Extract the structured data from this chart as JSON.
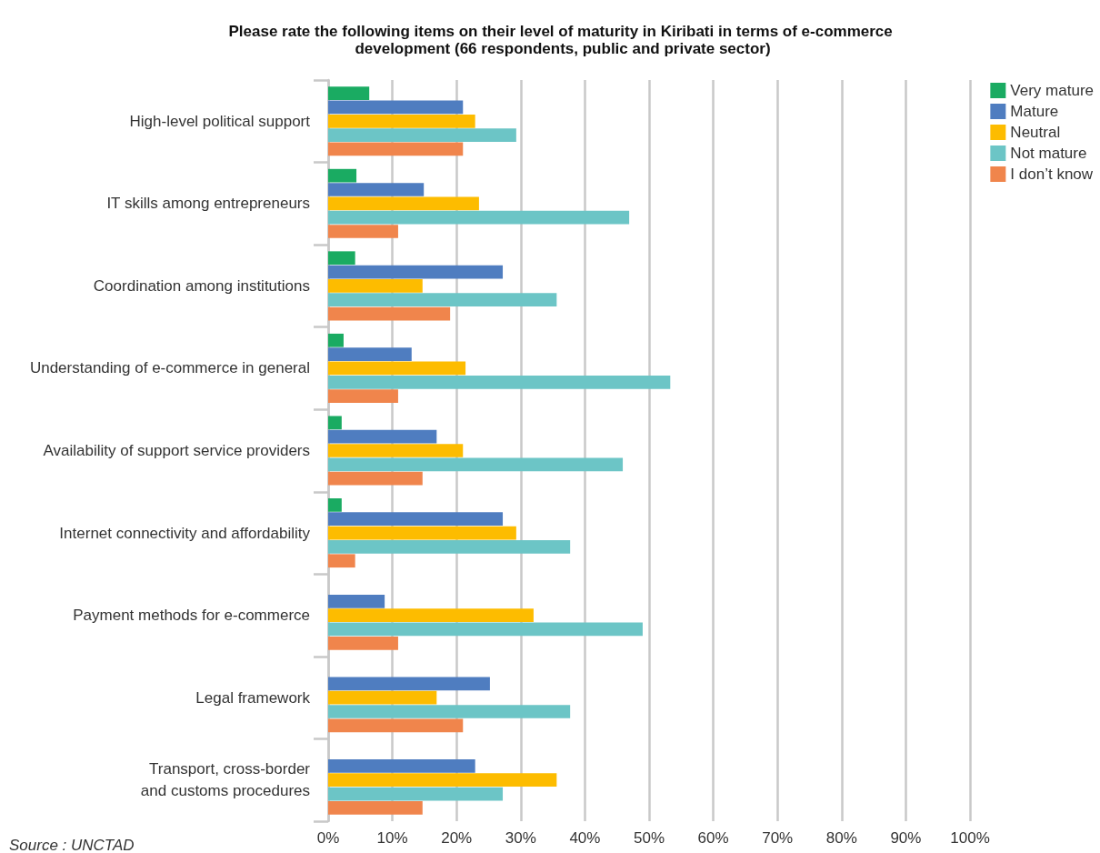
{
  "chart_data": {
    "type": "bar",
    "orientation": "horizontal",
    "title": "Please rate the following items on their level of maturity in Kiribati in terms of e-commerce development (66 respondents, public and private sector)",
    "categories": [
      "High-level political support",
      "IT skills among entrepreneurs",
      "Coordination among institutions",
      "Understanding of e-commerce in general",
      "Availability of support service providers",
      "Internet connectivity and affordability",
      "Payment methods for e-commerce",
      "Legal framework",
      "Transport, cross-border\nand customs procedures"
    ],
    "series": [
      {
        "name": "Very mature",
        "color": "#1aab62",
        "values": [
          6.4,
          4.4,
          4.2,
          2.4,
          2.1,
          2.1,
          0,
          0,
          0
        ]
      },
      {
        "name": "Mature",
        "color": "#4f7dc0",
        "values": [
          21.0,
          14.9,
          27.2,
          13.0,
          16.9,
          27.2,
          8.8,
          25.2,
          22.9
        ]
      },
      {
        "name": "Neutral",
        "color": "#fdbc00",
        "values": [
          22.9,
          23.5,
          14.7,
          21.4,
          21.0,
          29.3,
          32.0,
          16.9,
          35.6
        ]
      },
      {
        "name": "Not mature",
        "color": "#6cc5c6",
        "values": [
          29.3,
          46.9,
          35.6,
          53.3,
          45.9,
          37.7,
          49.0,
          37.7,
          27.2
        ]
      },
      {
        "name": "I don’t know",
        "color": "#f0854c",
        "values": [
          21.0,
          10.9,
          19.0,
          10.9,
          14.7,
          4.2,
          10.9,
          21.0,
          14.7
        ]
      }
    ],
    "xlim": [
      0,
      100
    ],
    "xticks": [
      {
        "value": 0,
        "label": "0%"
      },
      {
        "value": 10,
        "label": "10%"
      },
      {
        "value": 20,
        "label": "20%"
      },
      {
        "value": 30,
        "label": "30%"
      },
      {
        "value": 40,
        "label": "40%"
      },
      {
        "value": 50,
        "label": "50%"
      },
      {
        "value": 60,
        "label": "60%"
      },
      {
        "value": 70,
        "label": "70%"
      },
      {
        "value": 80,
        "label": "80%"
      },
      {
        "value": 90,
        "label": "90%"
      },
      {
        "value": 100,
        "label": "100%"
      }
    ],
    "grid": "x",
    "legend": "top right",
    "annotations": [
      "Source : UNCTAD"
    ]
  }
}
